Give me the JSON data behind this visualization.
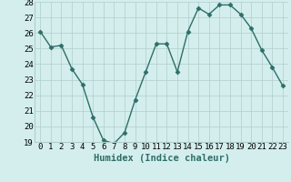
{
  "x": [
    0,
    1,
    2,
    3,
    4,
    5,
    6,
    7,
    8,
    9,
    10,
    11,
    12,
    13,
    14,
    15,
    16,
    17,
    18,
    19,
    20,
    21,
    22,
    23
  ],
  "y": [
    26.1,
    25.1,
    25.2,
    23.7,
    22.7,
    20.6,
    19.1,
    18.9,
    19.6,
    21.7,
    23.5,
    25.3,
    25.3,
    23.5,
    26.1,
    27.6,
    27.2,
    27.8,
    27.8,
    27.2,
    26.3,
    24.9,
    23.8,
    22.6
  ],
  "xlabel": "Humidex (Indice chaleur)",
  "xlim": [
    -0.5,
    23.5
  ],
  "ylim": [
    19,
    28
  ],
  "yticks": [
    19,
    20,
    21,
    22,
    23,
    24,
    25,
    26,
    27,
    28
  ],
  "xticks": [
    0,
    1,
    2,
    3,
    4,
    5,
    6,
    7,
    8,
    9,
    10,
    11,
    12,
    13,
    14,
    15,
    16,
    17,
    18,
    19,
    20,
    21,
    22,
    23
  ],
  "line_color": "#2e6e68",
  "marker": "D",
  "marker_size": 2.5,
  "bg_color": "#d4eeee",
  "grid_color": "#b0cccc",
  "xlabel_fontsize": 7.5,
  "tick_fontsize": 6.5,
  "line_width": 1.0
}
